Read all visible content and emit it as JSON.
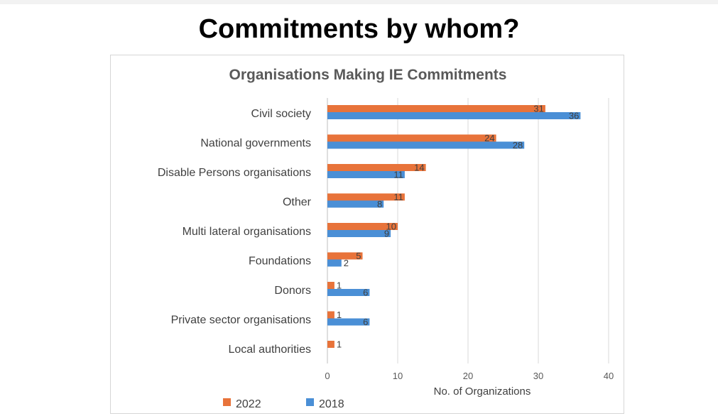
{
  "slide": {
    "title": "Commitments by whom?"
  },
  "chart_data": {
    "type": "bar",
    "orientation": "horizontal",
    "title": "Organisations Making  IE Commitments",
    "xlabel": "No. of Organizations",
    "ylabel": "",
    "xlim": [
      0,
      40
    ],
    "xticks": [
      "0",
      "10",
      "20",
      "30",
      "40"
    ],
    "grid": true,
    "legend_position": "bottom-left",
    "categories": [
      "Civil society",
      "National governments",
      "Disable Persons organisations",
      "Other",
      "Multi lateral organisations",
      "Foundations",
      "Donors",
      "Private sector organisations",
      "Local authorities"
    ],
    "series": [
      {
        "name": "2022",
        "color": "#E8733A",
        "values": [
          31,
          24,
          14,
          11,
          10,
          5,
          1,
          1,
          1
        ]
      },
      {
        "name": "2018",
        "color": "#4A8FD6",
        "values": [
          36,
          28,
          11,
          8,
          9,
          2,
          6,
          6,
          null
        ]
      }
    ]
  }
}
